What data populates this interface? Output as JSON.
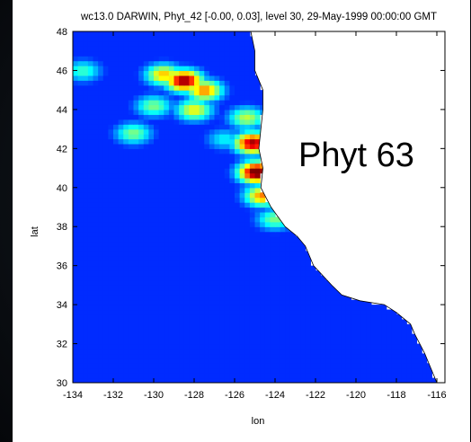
{
  "chart_data": {
    "type": "heatmap",
    "title": "wc13.0 DARWIN, Phyt_42 [-0.00, 0.03], level 30, 29-May-1999 00:00:00 GMT",
    "annotation": "Phyt 63",
    "xlabel": "lon",
    "ylabel": "lat",
    "xlim": [
      -134,
      -115.6
    ],
    "ylim": [
      30,
      48
    ],
    "x_ticks": [
      "-134",
      "-132",
      "-130",
      "-128",
      "-126",
      "-124",
      "-122",
      "-120",
      "-118",
      "-116"
    ],
    "y_ticks": [
      "30",
      "32",
      "34",
      "36",
      "38",
      "40",
      "42",
      "44",
      "46",
      "48"
    ],
    "colormap": "jet",
    "color_range": [
      -0.0,
      0.03
    ],
    "coast_lon_by_lat": [
      [
        48,
        -125.2
      ],
      [
        47,
        -125.0
      ],
      [
        46,
        -125.0
      ],
      [
        45,
        -124.6
      ],
      [
        44,
        -124.6
      ],
      [
        43,
        -124.7
      ],
      [
        42,
        -124.8
      ],
      [
        41,
        -124.6
      ],
      [
        40,
        -124.7
      ],
      [
        39,
        -124.2
      ],
      [
        38,
        -123.5
      ],
      [
        37.5,
        -122.9
      ],
      [
        37,
        -122.5
      ],
      [
        36,
        -122.1
      ],
      [
        35,
        -121.2
      ],
      [
        34.5,
        -120.7
      ],
      [
        34.2,
        -119.8
      ],
      [
        34,
        -118.6
      ],
      [
        33.6,
        -118.0
      ],
      [
        33,
        -117.3
      ],
      [
        32.5,
        -117.1
      ],
      [
        31.5,
        -116.6
      ],
      [
        30.5,
        -116.2
      ],
      [
        30,
        -116.0
      ]
    ],
    "hotspots": [
      {
        "lon": -128.5,
        "lat": 45.5,
        "value": 0.028
      },
      {
        "lon": -127.5,
        "lat": 45.0,
        "value": 0.02
      },
      {
        "lon": -129.5,
        "lat": 45.8,
        "value": 0.018
      },
      {
        "lon": -128.0,
        "lat": 44.0,
        "value": 0.016
      },
      {
        "lon": -130.0,
        "lat": 44.2,
        "value": 0.012
      },
      {
        "lon": -131.0,
        "lat": 42.8,
        "value": 0.012
      },
      {
        "lon": -133.5,
        "lat": 46.0,
        "value": 0.01
      },
      {
        "lon": -125.1,
        "lat": 42.3,
        "value": 0.027
      },
      {
        "lon": -124.9,
        "lat": 40.8,
        "value": 0.03
      },
      {
        "lon": -124.6,
        "lat": 39.6,
        "value": 0.02
      },
      {
        "lon": -124.0,
        "lat": 38.4,
        "value": 0.012
      },
      {
        "lon": -125.4,
        "lat": 43.6,
        "value": 0.014
      },
      {
        "lon": -126.5,
        "lat": 42.5,
        "value": 0.008
      }
    ]
  }
}
